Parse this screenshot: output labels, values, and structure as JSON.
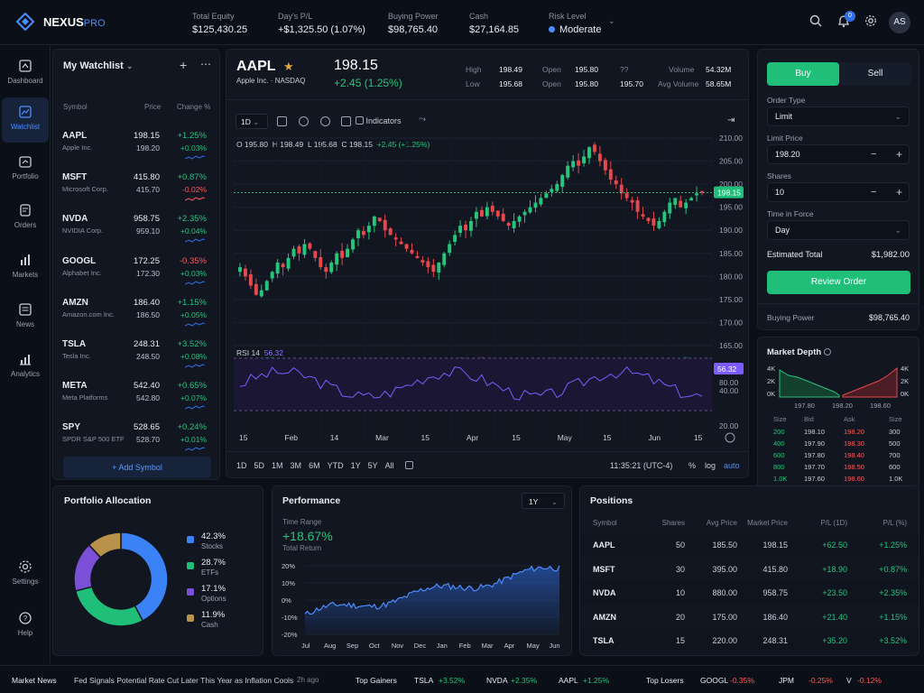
{
  "brand": {
    "name": "NEXUS",
    "suffix": "PRO"
  },
  "topbar": {
    "stats": [
      {
        "label": "Total Equity",
        "value": "$125,430.25",
        "tone": ""
      },
      {
        "label": "Day's P/L",
        "value": "+$1,325.50 (1.07%)",
        "tone": "pos"
      },
      {
        "label": "Buying Power",
        "value": "$98,765.40",
        "tone": ""
      },
      {
        "label": "Cash",
        "value": "$27,164.85",
        "tone": ""
      }
    ],
    "risk": {
      "label": "Risk Level",
      "value": "Moderate"
    },
    "notifications_count": "0",
    "avatar": "AS"
  },
  "nav": [
    {
      "label": "Dashboard",
      "icon": "dashboard-icon"
    },
    {
      "label": "Watchlist",
      "icon": "watchlist-icon"
    },
    {
      "label": "Portfolio",
      "icon": "portfolio-icon"
    },
    {
      "label": "Orders",
      "icon": "orders-icon"
    },
    {
      "label": "Markets",
      "icon": "markets-icon"
    },
    {
      "label": "News",
      "icon": "news-icon"
    },
    {
      "label": "Analytics",
      "icon": "analytics-icon"
    },
    {
      "label": "Settings",
      "icon": "gear-icon"
    },
    {
      "label": "Help",
      "icon": "help-icon"
    }
  ],
  "watchlist": {
    "title": "My Watchlist",
    "headers": {
      "symbol": "Symbol",
      "price": "Price",
      "change": "Change %"
    },
    "rows": [
      {
        "sym": "AAPL",
        "name": "Apple Inc.",
        "p1": "198.15",
        "p2": "198.20",
        "c1": "+1.25%",
        "c2": "+0.03%",
        "t1": "pos",
        "t2": "pos"
      },
      {
        "sym": "MSFT",
        "name": "Microsoft Corp.",
        "p1": "415.80",
        "p2": "415.70",
        "c1": "+0.87%",
        "c2": "-0.02%",
        "t1": "pos",
        "t2": "neg"
      },
      {
        "sym": "NVDA",
        "name": "NVIDIA Corp.",
        "p1": "958.75",
        "p2": "959.10",
        "c1": "+2.35%",
        "c2": "+0.04%",
        "t1": "pos",
        "t2": "pos"
      },
      {
        "sym": "GOOGL",
        "name": "Alphabet Inc.",
        "p1": "172.25",
        "p2": "172.30",
        "c1": "-0.35%",
        "c2": "+0.03%",
        "t1": "neg",
        "t2": "pos"
      },
      {
        "sym": "AMZN",
        "name": "Amazon.com Inc.",
        "p1": "186.40",
        "p2": "186.50",
        "c1": "+1.15%",
        "c2": "+0.05%",
        "t1": "pos",
        "t2": "pos"
      },
      {
        "sym": "TSLA",
        "name": "Tesla Inc.",
        "p1": "248.31",
        "p2": "248.50",
        "c1": "+3.52%",
        "c2": "+0.08%",
        "t1": "pos",
        "t2": "pos"
      },
      {
        "sym": "META",
        "name": "Meta Platforms",
        "p1": "542.40",
        "p2": "542.80",
        "c1": "+0.65%",
        "c2": "+0.07%",
        "t1": "pos",
        "t2": "pos"
      },
      {
        "sym": "SPY",
        "name": "SPDR S&P 500 ETF",
        "p1": "528.65",
        "p2": "528.70",
        "c1": "+0.24%",
        "c2": "+0.01%",
        "t1": "pos",
        "t2": "pos"
      }
    ],
    "add_label": "+ Add Symbol"
  },
  "chart": {
    "symbol": "AAPL",
    "company": "Apple Inc. · NASDAQ",
    "price": "198.15",
    "change": "+2.45 (1.25%)",
    "stats": [
      {
        "k": "High",
        "v": "198.49"
      },
      {
        "k": "Open",
        "v": "195.80"
      },
      {
        "k": "Volume",
        "v": "54.32M"
      },
      {
        "k": "Low",
        "v": "195.68"
      },
      {
        "k": "Open",
        "v": "195.80"
      },
      {
        "k": "Avg Volume",
        "v": "58.65M"
      }
    ],
    "extra_stats": [
      {
        "k": "??",
        "v": "??"
      },
      {
        "k": "??",
        "v": "195.70"
      }
    ],
    "interval": "1D",
    "indicators_label": "Indicators",
    "ohlc": {
      "o": "O 195.80",
      "h": "H 198.49",
      "l": "L 195.68",
      "c": "C 198.15",
      "chg": "+2.45 (+1.25%)"
    },
    "price_axis": [
      "210.00",
      "205.00",
      "200.00",
      "195.00",
      "190.00",
      "185.00",
      "180.00",
      "175.00",
      "170.00",
      "165.00"
    ],
    "last_price_tag": "198.15",
    "rsi": {
      "label": "RSI 14",
      "value": "56.32",
      "axis": [
        "80.00",
        "40.00",
        "20.00"
      ]
    },
    "date_axis": [
      "15",
      "Feb",
      "14",
      "Mar",
      "15",
      "Apr",
      "15",
      "May",
      "15",
      "Jun",
      "15"
    ],
    "ranges": [
      "1D",
      "5D",
      "1M",
      "3M",
      "6M",
      "YTD",
      "1Y",
      "5Y",
      "All"
    ],
    "time": "11:35:21 (UTC-4)",
    "scale_opts": [
      "%",
      "log",
      "auto"
    ]
  },
  "order": {
    "buy": "Buy",
    "sell": "Sell",
    "type_label": "Order Type",
    "type_value": "Limit",
    "limit_label": "Limit Price",
    "limit_value": "198.20",
    "shares_label": "Shares",
    "shares_value": "10",
    "tif_label": "Time in Force",
    "tif_value": "Day",
    "est_label": "Estimated Total",
    "est_value": "$1,982.00",
    "review": "Review Order",
    "bp_label": "Buying Power",
    "bp_value": "$98,765.40"
  },
  "depth": {
    "title": "Market Depth",
    "y_axis": [
      "4K",
      "2K",
      "0K"
    ],
    "x_axis": [
      "197.80",
      "198.20",
      "198.60"
    ],
    "headers": [
      "Size",
      "Bid",
      "Ask",
      "Size"
    ],
    "rows": [
      [
        "200",
        "198.10",
        "198.20",
        "300"
      ],
      [
        "400",
        "197.90",
        "198.30",
        "500"
      ],
      [
        "600",
        "197.80",
        "198.40",
        "700"
      ],
      [
        "800",
        "197.70",
        "198.50",
        "600"
      ],
      [
        "1.0K",
        "197.60",
        "198.60",
        "1.0K"
      ]
    ]
  },
  "allocation": {
    "title": "Portfolio Allocation",
    "items": [
      {
        "pct": "42.3%",
        "name": "Stocks",
        "color": "#3b82f6",
        "value": 42.3
      },
      {
        "pct": "28.7%",
        "name": "ETFs",
        "color": "#1fbf7a",
        "value": 28.7
      },
      {
        "pct": "17.1%",
        "name": "Options",
        "color": "#7b4fd6",
        "value": 17.1
      },
      {
        "pct": "11.9%",
        "name": "Cash",
        "color": "#b8924a",
        "value": 11.9
      }
    ]
  },
  "performance": {
    "title": "Performance",
    "period": "1Y",
    "range_label": "Time Range",
    "return_value": "+18.67%",
    "return_label": "Total Return",
    "y_axis": [
      "20%",
      "10%",
      "0%",
      "-10%",
      "-20%"
    ],
    "x_axis": [
      "Jul",
      "Aug",
      "Sep",
      "Oct",
      "Nov",
      "Dec",
      "Jan",
      "Feb",
      "Mar",
      "Apr",
      "May",
      "Jun"
    ]
  },
  "positions": {
    "title": "Positions",
    "headers": [
      "Symbol",
      "Shares",
      "Avg Price",
      "Market Price",
      "P/L (1D)",
      "P/L (%)"
    ],
    "rows": [
      [
        "AAPL",
        "50",
        "185.50",
        "198.15",
        "+62.50",
        "+1.25%"
      ],
      [
        "MSFT",
        "30",
        "395.00",
        "415.80",
        "+18.90",
        "+0.87%"
      ],
      [
        "NVDA",
        "10",
        "880.00",
        "958.75",
        "+23.50",
        "+2.35%"
      ],
      [
        "AMZN",
        "20",
        "175.00",
        "186.40",
        "+21.40",
        "+1.15%"
      ],
      [
        "TSLA",
        "15",
        "220.00",
        "248.31",
        "+35.20",
        "+3.52%"
      ]
    ]
  },
  "footer": {
    "news_label": "Market News",
    "headline": "Fed Signals Potential Rate Cut Later This Year as Inflation Cools",
    "ago": "2h ago",
    "gainers_label": "Top Gainers",
    "gainers": [
      {
        "s": "TSLA",
        "c": "+3.52%"
      },
      {
        "s": "NVDA",
        "c": "+2.35%"
      },
      {
        "s": "AAPL",
        "c": "+1.25%"
      }
    ],
    "losers_label": "Top Losers",
    "losers": [
      {
        "s": "GOOGL",
        "c": "-0.35%"
      },
      {
        "s": "JPM",
        "c": "-0.25%"
      },
      {
        "s": "V",
        "c": "-0.12%"
      }
    ]
  }
}
